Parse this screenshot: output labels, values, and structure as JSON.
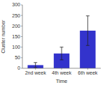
{
  "chart_data": {
    "type": "bar",
    "categories": [
      "2nd week",
      "4th week",
      "6th week"
    ],
    "values": [
      15,
      70,
      178
    ],
    "errors": [
      12,
      30,
      70
    ],
    "color": "#3333cc",
    "xlabel": "Time",
    "ylabel": "Cluster number",
    "ylim": [
      0,
      300
    ],
    "yticks": [
      0,
      50,
      100,
      150,
      200,
      250,
      300
    ],
    "grid": false
  }
}
